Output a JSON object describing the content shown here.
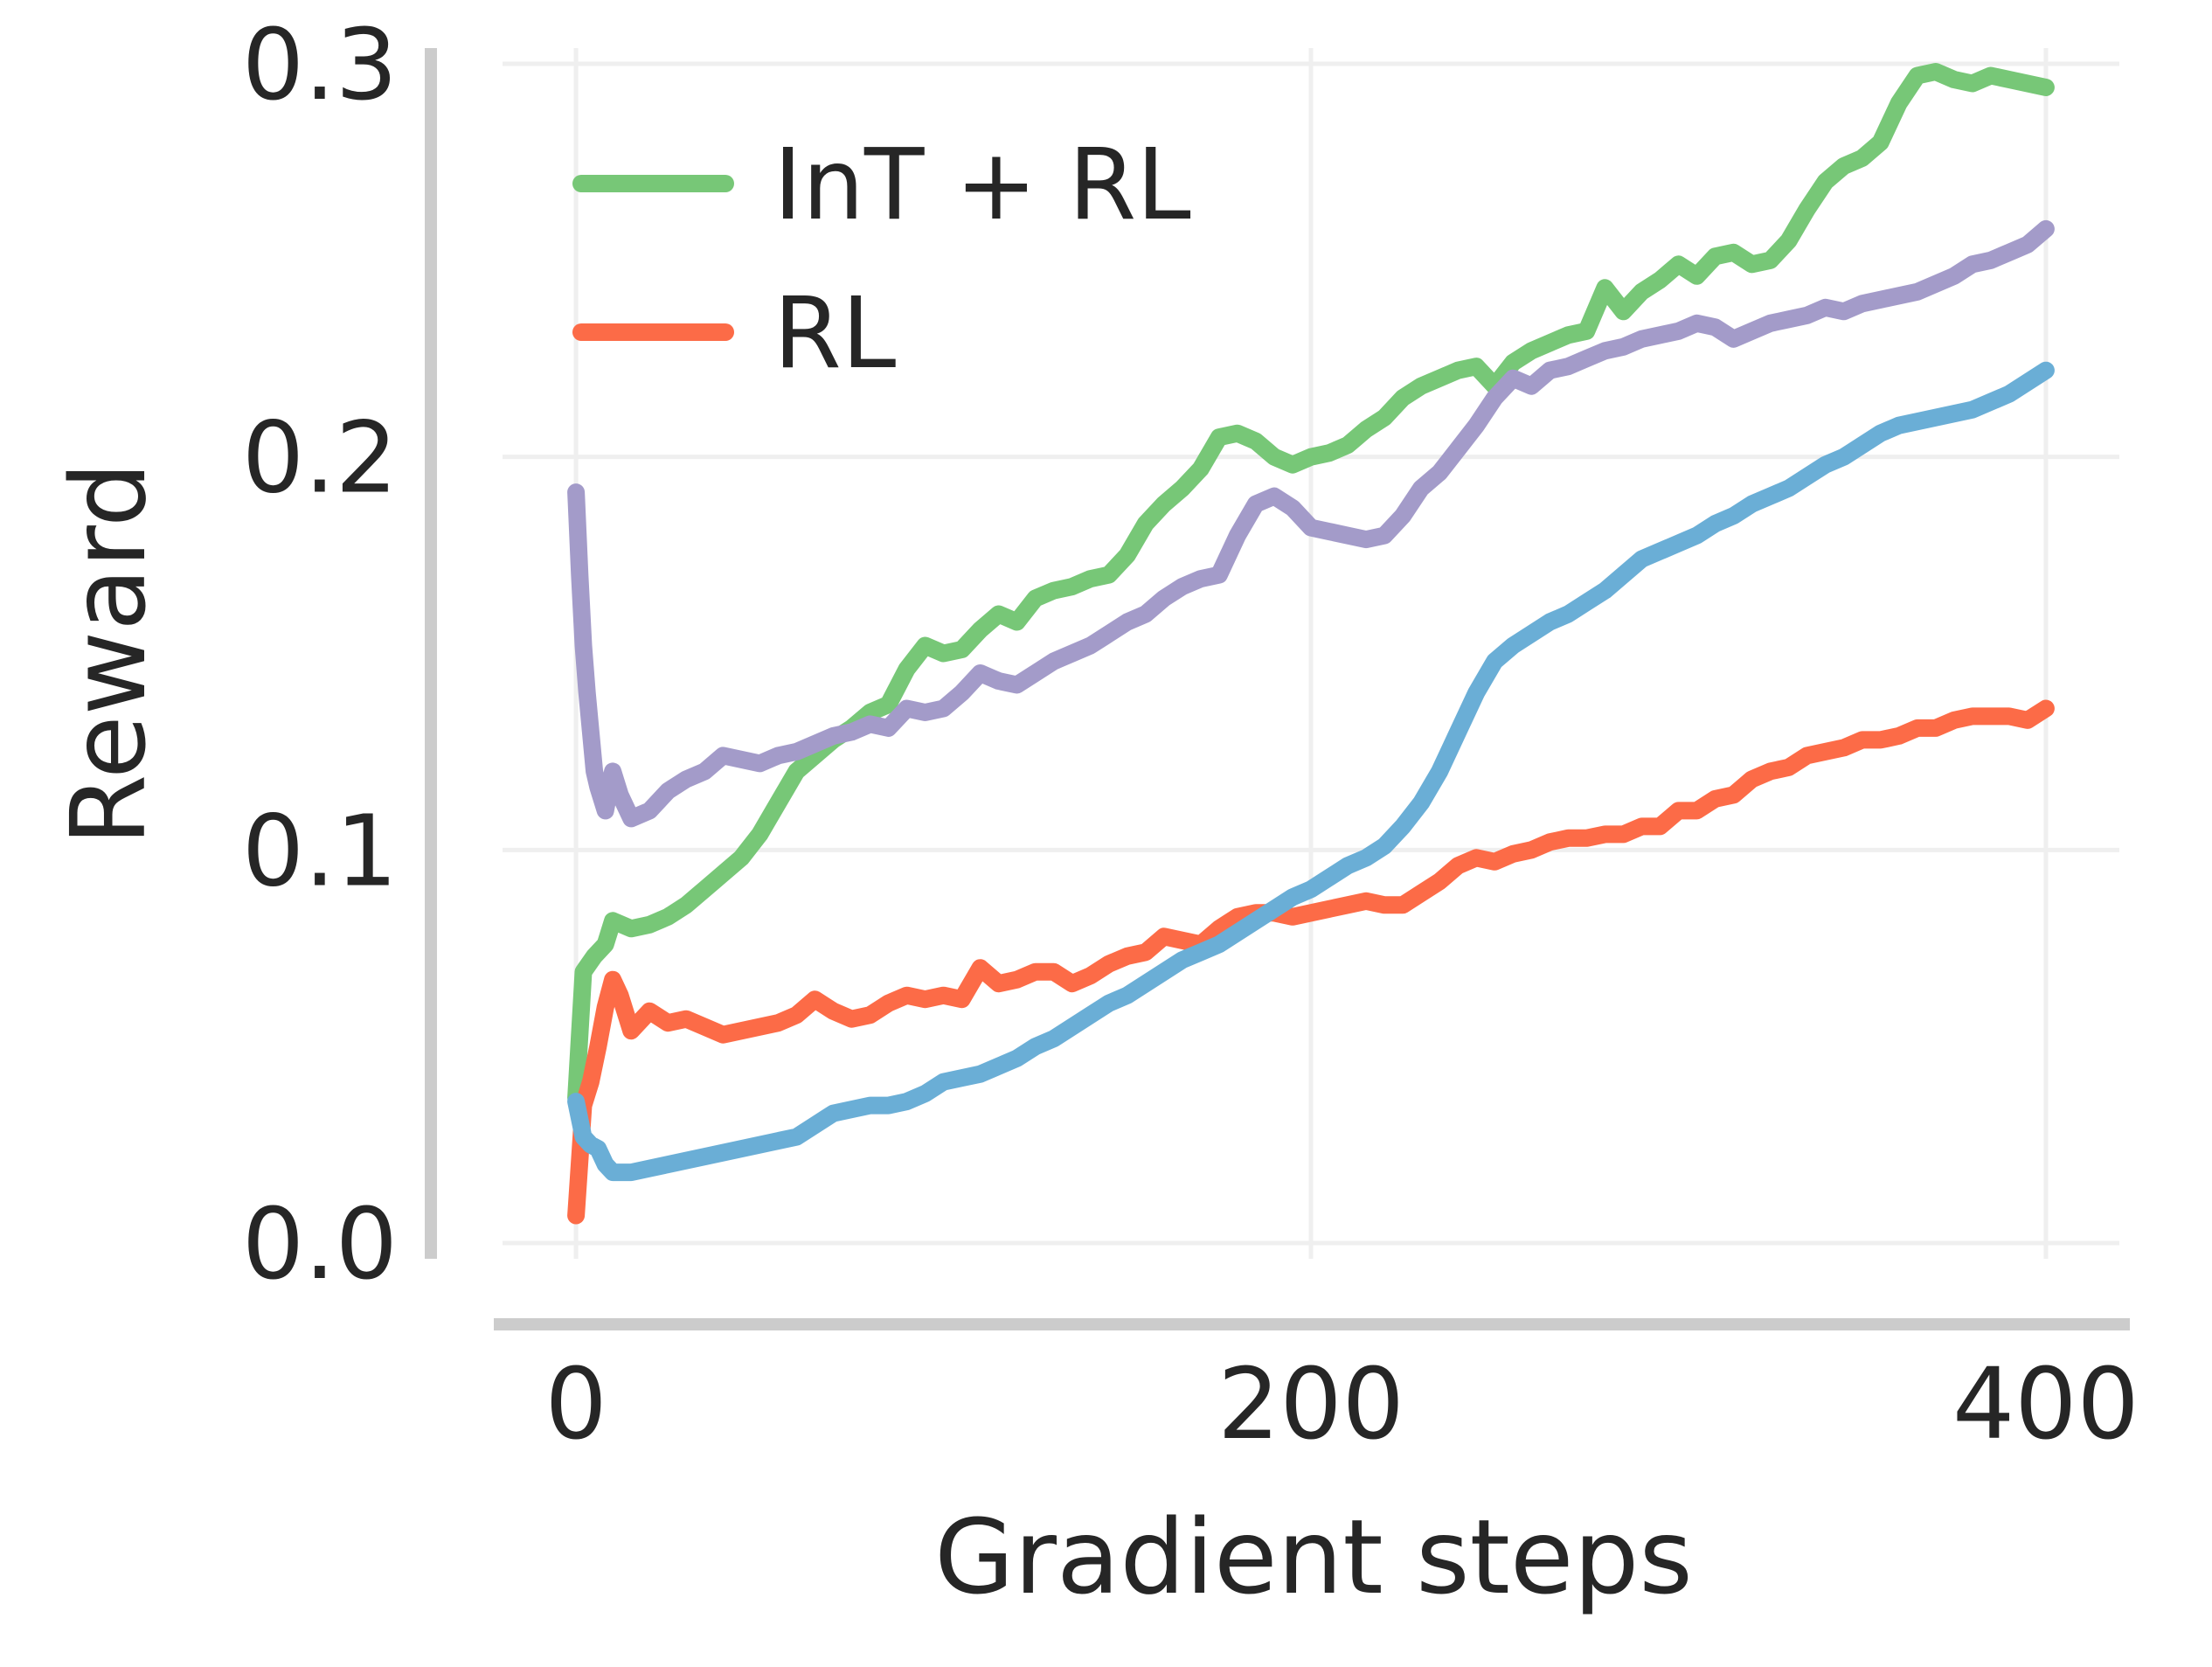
{
  "chart_data": {
    "type": "line",
    "xlabel": "Gradient steps",
    "ylabel": "Reward",
    "xlim": [
      -20,
      420
    ],
    "ylim": [
      -0.004,
      0.304
    ],
    "xticks": [
      0,
      200,
      400
    ],
    "yticks": [
      0.0,
      0.1,
      0.2,
      0.3
    ],
    "xtick_labels": [
      "0",
      "200",
      "400"
    ],
    "ytick_labels": [
      "0.0",
      "0.1",
      "0.2",
      "0.3"
    ],
    "grid": true,
    "legend_position": "top-left",
    "series": [
      {
        "name": "InT + RL",
        "color": "#77c777",
        "x": [
          0,
          2,
          5,
          8,
          10,
          15,
          20,
          25,
          30,
          35,
          40,
          45,
          50,
          55,
          60,
          65,
          70,
          75,
          80,
          85,
          90,
          95,
          100,
          105,
          110,
          115,
          120,
          125,
          130,
          135,
          140,
          145,
          150,
          155,
          160,
          165,
          170,
          175,
          180,
          185,
          190,
          195,
          200,
          205,
          210,
          215,
          220,
          225,
          230,
          235,
          240,
          245,
          250,
          255,
          260,
          265,
          270,
          275,
          280,
          285,
          290,
          295,
          300,
          305,
          310,
          315,
          320,
          325,
          330,
          335,
          340,
          345,
          350,
          355,
          360,
          365,
          370,
          375,
          380,
          385,
          390,
          395,
          400
        ],
        "values": [
          0.037,
          0.069,
          0.073,
          0.076,
          0.082,
          0.08,
          0.081,
          0.083,
          0.086,
          0.09,
          0.094,
          0.098,
          0.104,
          0.112,
          0.12,
          0.124,
          0.128,
          0.131,
          0.135,
          0.137,
          0.146,
          0.152,
          0.15,
          0.151,
          0.156,
          0.16,
          0.158,
          0.164,
          0.166,
          0.167,
          0.169,
          0.17,
          0.175,
          0.183,
          0.188,
          0.192,
          0.197,
          0.205,
          0.206,
          0.204,
          0.2,
          0.198,
          0.2,
          0.201,
          0.203,
          0.207,
          0.21,
          0.215,
          0.218,
          0.22,
          0.222,
          0.223,
          0.218,
          0.224,
          0.227,
          0.229,
          0.231,
          0.232,
          0.243,
          0.237,
          0.242,
          0.245,
          0.249,
          0.246,
          0.251,
          0.252,
          0.249,
          0.25,
          0.255,
          0.263,
          0.27,
          0.274,
          0.276,
          0.28,
          0.29,
          0.297,
          0.298,
          0.296,
          0.295,
          0.297,
          0.296,
          0.295,
          0.294
        ]
      },
      {
        "name": "RL",
        "color": "#fc6b47",
        "x": [
          0,
          2,
          4,
          6,
          8,
          10,
          12,
          15,
          20,
          25,
          30,
          35,
          40,
          45,
          50,
          55,
          60,
          65,
          70,
          75,
          80,
          85,
          90,
          95,
          100,
          105,
          110,
          115,
          120,
          125,
          130,
          135,
          140,
          145,
          150,
          155,
          160,
          165,
          170,
          175,
          180,
          185,
          190,
          195,
          200,
          205,
          210,
          215,
          220,
          225,
          230,
          235,
          240,
          245,
          250,
          255,
          260,
          265,
          270,
          275,
          280,
          285,
          290,
          295,
          300,
          305,
          310,
          315,
          320,
          325,
          330,
          335,
          340,
          345,
          350,
          355,
          360,
          365,
          370,
          375,
          380,
          385,
          390,
          395,
          400
        ],
        "values": [
          0.007,
          0.035,
          0.041,
          0.05,
          0.06,
          0.067,
          0.063,
          0.054,
          0.059,
          0.056,
          0.057,
          0.055,
          0.053,
          0.054,
          0.055,
          0.056,
          0.058,
          0.062,
          0.059,
          0.057,
          0.058,
          0.061,
          0.063,
          0.062,
          0.063,
          0.062,
          0.07,
          0.066,
          0.067,
          0.069,
          0.069,
          0.066,
          0.068,
          0.071,
          0.073,
          0.074,
          0.078,
          0.077,
          0.076,
          0.08,
          0.083,
          0.084,
          0.084,
          0.083,
          0.084,
          0.085,
          0.086,
          0.087,
          0.086,
          0.086,
          0.089,
          0.092,
          0.096,
          0.098,
          0.097,
          0.099,
          0.1,
          0.102,
          0.103,
          0.103,
          0.104,
          0.104,
          0.106,
          0.106,
          0.11,
          0.11,
          0.113,
          0.114,
          0.118,
          0.12,
          0.121,
          0.124,
          0.125,
          0.126,
          0.128,
          0.128,
          0.129,
          0.131,
          0.131,
          0.133,
          0.134,
          0.134,
          0.134,
          0.133,
          0.136
        ]
      },
      {
        "color": "#a39bc9",
        "x": [
          0,
          1,
          2,
          3,
          4,
          5,
          6,
          8,
          10,
          12,
          15,
          20,
          25,
          30,
          35,
          40,
          45,
          50,
          55,
          60,
          65,
          70,
          75,
          80,
          85,
          90,
          95,
          100,
          105,
          110,
          115,
          120,
          125,
          130,
          135,
          140,
          145,
          150,
          155,
          160,
          165,
          170,
          175,
          180,
          185,
          190,
          195,
          200,
          205,
          210,
          215,
          220,
          225,
          230,
          235,
          240,
          245,
          250,
          255,
          260,
          265,
          270,
          275,
          280,
          285,
          290,
          295,
          300,
          305,
          310,
          315,
          320,
          325,
          330,
          335,
          340,
          345,
          350,
          355,
          360,
          365,
          370,
          375,
          380,
          385,
          390,
          395,
          400
        ],
        "values": [
          0.191,
          0.17,
          0.152,
          0.14,
          0.13,
          0.12,
          0.116,
          0.11,
          0.12,
          0.114,
          0.108,
          0.11,
          0.115,
          0.118,
          0.12,
          0.124,
          0.123,
          0.122,
          0.124,
          0.125,
          0.127,
          0.129,
          0.13,
          0.132,
          0.131,
          0.136,
          0.135,
          0.136,
          0.14,
          0.145,
          0.143,
          0.142,
          0.145,
          0.148,
          0.15,
          0.152,
          0.155,
          0.158,
          0.16,
          0.164,
          0.167,
          0.169,
          0.17,
          0.18,
          0.188,
          0.19,
          0.187,
          0.182,
          0.181,
          0.18,
          0.179,
          0.18,
          0.185,
          0.192,
          0.196,
          0.202,
          0.208,
          0.215,
          0.22,
          0.218,
          0.222,
          0.223,
          0.225,
          0.227,
          0.228,
          0.23,
          0.231,
          0.232,
          0.234,
          0.233,
          0.23,
          0.232,
          0.234,
          0.235,
          0.236,
          0.238,
          0.237,
          0.239,
          0.24,
          0.241,
          0.242,
          0.244,
          0.246,
          0.249,
          0.25,
          0.252,
          0.254,
          0.258
        ]
      },
      {
        "color": "#6aaed6",
        "x": [
          0,
          2,
          4,
          6,
          8,
          10,
          15,
          20,
          25,
          30,
          35,
          40,
          45,
          50,
          55,
          60,
          65,
          70,
          75,
          80,
          85,
          90,
          95,
          100,
          105,
          110,
          115,
          120,
          125,
          130,
          135,
          140,
          145,
          150,
          155,
          160,
          165,
          170,
          175,
          180,
          185,
          190,
          195,
          200,
          205,
          210,
          215,
          220,
          225,
          230,
          235,
          240,
          245,
          250,
          255,
          260,
          265,
          270,
          275,
          280,
          285,
          290,
          295,
          300,
          305,
          310,
          315,
          320,
          325,
          330,
          335,
          340,
          345,
          350,
          355,
          360,
          365,
          370,
          375,
          380,
          385,
          390,
          395,
          400
        ],
        "values": [
          0.036,
          0.027,
          0.025,
          0.024,
          0.02,
          0.018,
          0.018,
          0.019,
          0.02,
          0.021,
          0.022,
          0.023,
          0.024,
          0.025,
          0.026,
          0.027,
          0.03,
          0.033,
          0.034,
          0.035,
          0.035,
          0.036,
          0.038,
          0.041,
          0.042,
          0.043,
          0.045,
          0.047,
          0.05,
          0.052,
          0.055,
          0.058,
          0.061,
          0.063,
          0.066,
          0.069,
          0.072,
          0.074,
          0.076,
          0.079,
          0.082,
          0.085,
          0.088,
          0.09,
          0.093,
          0.096,
          0.098,
          0.101,
          0.106,
          0.112,
          0.12,
          0.13,
          0.14,
          0.148,
          0.152,
          0.155,
          0.158,
          0.16,
          0.163,
          0.166,
          0.17,
          0.174,
          0.176,
          0.178,
          0.18,
          0.183,
          0.185,
          0.188,
          0.19,
          0.192,
          0.195,
          0.198,
          0.2,
          0.203,
          0.206,
          0.208,
          0.209,
          0.21,
          0.211,
          0.212,
          0.214,
          0.216,
          0.219,
          0.222
        ]
      }
    ]
  }
}
